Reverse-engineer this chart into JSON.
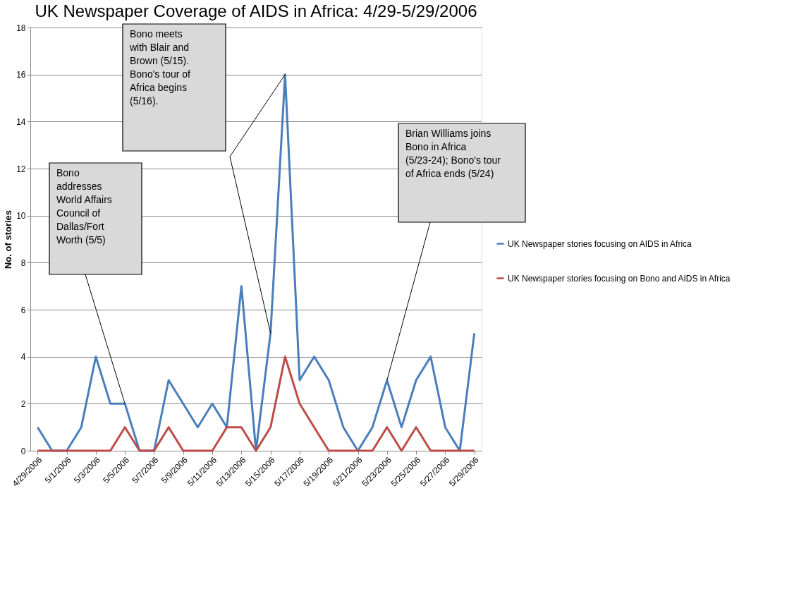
{
  "chart_data": {
    "type": "line",
    "title": "UK Newspaper Coverage of AIDS in Africa: 4/29-5/29/2006",
    "ylabel": "No. of stories",
    "x": [
      "2006-04-29",
      "2006-04-30",
      "2006-05-01",
      "2006-05-02",
      "2006-05-03",
      "2006-05-04",
      "2006-05-05",
      "2006-05-06",
      "2006-05-07",
      "2006-05-08",
      "2006-05-09",
      "2006-05-10",
      "2006-05-11",
      "2006-05-12",
      "2006-05-13",
      "2006-05-14",
      "2006-05-15",
      "2006-05-16",
      "2006-05-17",
      "2006-05-18",
      "2006-05-19",
      "2006-05-20",
      "2006-05-21",
      "2006-05-22",
      "2006-05-23",
      "2006-05-24",
      "2006-05-25",
      "2006-05-26",
      "2006-05-27",
      "2006-05-28",
      "2006-05-29"
    ],
    "series": [
      {
        "name": "UK Newspaper stories focusing on AIDS in Africa",
        "color": "#4a7ebb",
        "values": [
          1,
          0,
          0,
          1,
          4,
          2,
          2,
          0,
          0,
          3,
          2,
          1,
          2,
          1,
          7,
          0,
          5,
          16,
          3,
          4,
          3,
          1,
          0,
          1,
          3,
          1,
          3,
          4,
          1,
          0,
          5
        ]
      },
      {
        "name": "UK Newspaper stories focusing on Bono and AIDS in Africa",
        "color": "#be4b48",
        "values": [
          0,
          0,
          0,
          0,
          0,
          0,
          1,
          0,
          0,
          1,
          0,
          0,
          0,
          1,
          1,
          0,
          1,
          4,
          2,
          1,
          0,
          0,
          0,
          0,
          1,
          0,
          1,
          0,
          0,
          0,
          0
        ]
      }
    ],
    "xlim": [
      "2006-04-28T12:00",
      "2006-05-29T12:00"
    ],
    "xticks": [
      {
        "value": "2006-04-29",
        "label": "4/29/2006"
      },
      {
        "value": "2006-05-01",
        "label": "5/1/2006"
      },
      {
        "value": "2006-05-03",
        "label": "5/3/2006"
      },
      {
        "value": "2006-05-05",
        "label": "5/5/2006"
      },
      {
        "value": "2006-05-07",
        "label": "5/7/2006"
      },
      {
        "value": "2006-05-09",
        "label": "5/9/2006"
      },
      {
        "value": "2006-05-11",
        "label": "5/11/2006"
      },
      {
        "value": "2006-05-13",
        "label": "5/13/2006"
      },
      {
        "value": "2006-05-15",
        "label": "5/15/2006"
      },
      {
        "value": "2006-05-17",
        "label": "5/17/2006"
      },
      {
        "value": "2006-05-19",
        "label": "5/19/2006"
      },
      {
        "value": "2006-05-21",
        "label": "5/21/2006"
      },
      {
        "value": "2006-05-23",
        "label": "5/23/2006"
      },
      {
        "value": "2006-05-25",
        "label": "5/25/2006"
      },
      {
        "value": "2006-05-27",
        "label": "5/27/2006"
      },
      {
        "value": "2006-05-29",
        "label": "5/29/2006"
      }
    ],
    "ylim": [
      0,
      18
    ],
    "yticks": [
      0,
      2,
      4,
      6,
      8,
      10,
      12,
      14,
      16,
      18
    ],
    "grid": "y",
    "legend": "right",
    "marker": "none",
    "line_style": "solid",
    "annotations": [
      "Bono addresses World Affairs Council of Dallas/Fort Worth (5/5)",
      "Bono meets with Blair and Brown (5/15). Bono's tour of Africa begins (5/16).",
      "Brian Williams joins Bono in Africa (5/23-24); Bono's tour of Africa ends (5/24)"
    ]
  }
}
